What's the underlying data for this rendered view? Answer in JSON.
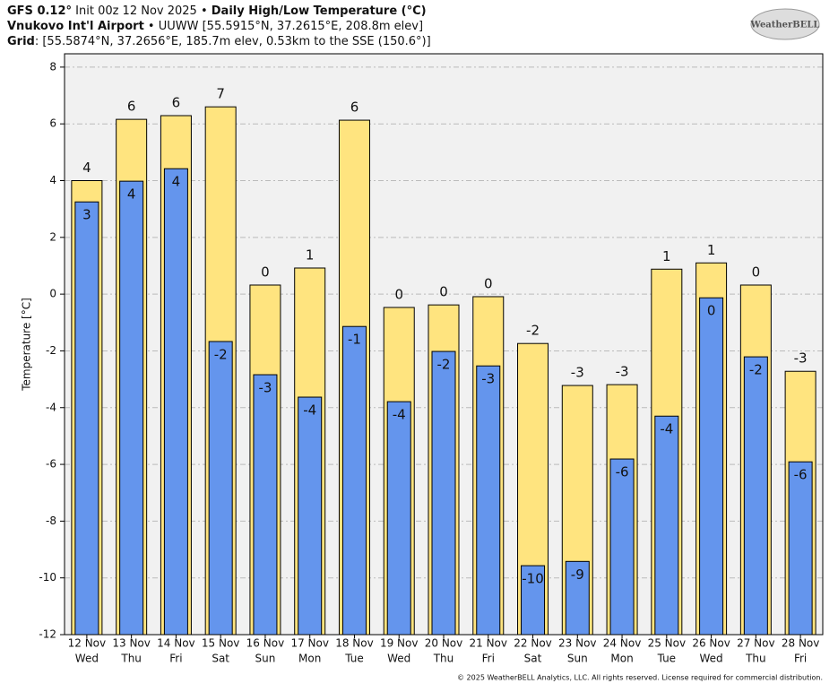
{
  "chart_data": {
    "type": "bar",
    "title_lines": [
      [
        {
          "text": "GFS 0.12°",
          "bold": true
        },
        {
          "text": " Init 00z 12 Nov 2025 • ",
          "bold": false
        },
        {
          "text": "Daily High/Low Temperature (°C)",
          "bold": true
        }
      ],
      [
        {
          "text": "Vnukovo Int'l Airport",
          "bold": true
        },
        {
          "text": " • UUWW [55.5915°N, 37.2615°E, 208.8m elev]",
          "bold": false
        }
      ],
      [
        {
          "text": "Grid",
          "bold": true
        },
        {
          "text": ": [55.5874°N, 37.2656°E, 185.7m elev, 0.53km to the SSE (150.6°)]",
          "bold": false
        }
      ]
    ],
    "logo": "WeatherBELL",
    "ylabel": "Temperature [°C]",
    "footer": "© 2025 WeatherBELL Analytics, LLC. All rights reserved. License required for commercial distribution.",
    "categories": [
      "12 Nov",
      "13 Nov",
      "14 Nov",
      "15 Nov",
      "16 Nov",
      "17 Nov",
      "18 Nov",
      "19 Nov",
      "20 Nov",
      "21 Nov",
      "22 Nov",
      "23 Nov",
      "24 Nov",
      "25 Nov",
      "26 Nov",
      "27 Nov",
      "28 Nov"
    ],
    "weekdays": [
      "Wed",
      "Thu",
      "Fri",
      "Sat",
      "Sun",
      "Mon",
      "Tue",
      "Wed",
      "Thu",
      "Fri",
      "Sat",
      "Sun",
      "Mon",
      "Tue",
      "Wed",
      "Thu",
      "Fri"
    ],
    "series": [
      {
        "color": "#ffe47f",
        "values": [
          4.0,
          6.16,
          6.29,
          6.6,
          0.32,
          0.92,
          6.13,
          -0.47,
          -0.38,
          -0.09,
          -1.74,
          -3.22,
          -3.19,
          0.88,
          1.1,
          0.32,
          -2.72
        ],
        "value_labels": [
          "4",
          "6",
          "6",
          "7",
          "0",
          "1",
          "6",
          "0",
          "0",
          "0",
          "-2",
          "-3",
          "-3",
          "1",
          "1",
          "0",
          "-3"
        ]
      },
      {
        "color": "#6495ed",
        "values": [
          3.25,
          3.98,
          4.42,
          -1.67,
          -2.84,
          -3.63,
          -1.14,
          -3.79,
          -2.02,
          -2.53,
          -9.57,
          -9.42,
          -5.81,
          -4.3,
          -0.13,
          -2.21,
          -5.91
        ],
        "value_labels": [
          "3",
          "4",
          "4",
          "-2",
          "-3",
          "-4",
          "-1",
          "-4",
          "-2",
          "-3",
          "-10",
          "-9",
          "-6",
          "-4",
          "0",
          "-2",
          "-6"
        ]
      }
    ],
    "ylim": [
      -12,
      8.47
    ],
    "yticks": [
      8,
      6,
      4,
      2,
      0,
      -2,
      -4,
      -6,
      -8,
      -10,
      -12
    ],
    "grid": true
  }
}
